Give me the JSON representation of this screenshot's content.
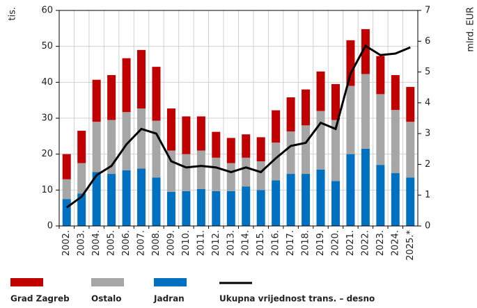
{
  "chart_data": {
    "type": "bar",
    "stacked": true,
    "y_label": "tis.",
    "y2_label": "mlrd. EUR",
    "categories": [
      "2002.",
      "2003.",
      "2004.",
      "2005.",
      "2006.",
      "2007.",
      "2008.",
      "2009.",
      "2010.",
      "2011.",
      "2012.",
      "2013.",
      "2014.",
      "2015.",
      "2016.",
      "2017.",
      "2018.",
      "2019.",
      "2020.",
      "2021.",
      "2022.",
      "2023.",
      "2024.",
      "2025.*"
    ],
    "series": [
      {
        "name": "Grad Zagreb",
        "color": "#c00000",
        "values": [
          7,
          9,
          11.7,
          12.5,
          15,
          16.3,
          15,
          11.7,
          10.5,
          9.5,
          7.2,
          7,
          6.5,
          6.7,
          9,
          9.5,
          10,
          11,
          10,
          12.7,
          12.5,
          10.6,
          9.7,
          9.7
        ]
      },
      {
        "name": "Ostalo",
        "color": "#a6a6a6",
        "values": [
          5.5,
          8.5,
          14,
          15,
          16.2,
          16.7,
          15.8,
          11.5,
          10.3,
          10.7,
          9.3,
          7.8,
          8,
          8,
          10.5,
          11.8,
          13.5,
          16.3,
          17,
          19,
          20.8,
          19.7,
          17.6,
          15.5
        ]
      },
      {
        "name": "Jadran",
        "color": "#0070c0",
        "values": [
          7.5,
          9,
          15,
          14.5,
          15.5,
          16,
          13.5,
          9.5,
          9.7,
          10.3,
          9.7,
          9.7,
          11,
          10,
          12.7,
          14.5,
          14.5,
          15.7,
          12.5,
          20,
          21.5,
          17,
          14.7,
          13.5
        ]
      },
      {
        "name": "Ukupna vrijednost trans. – desno",
        "color": "#000000",
        "type": "line",
        "axis": "y2",
        "values": [
          0.6,
          0.95,
          1.65,
          1.95,
          2.65,
          3.15,
          3.0,
          2.1,
          1.9,
          1.95,
          1.9,
          1.75,
          1.9,
          1.75,
          2.2,
          2.6,
          2.7,
          3.35,
          3.15,
          4.95,
          5.85,
          5.55,
          5.6,
          5.8
        ]
      }
    ],
    "ylim": [
      0,
      60
    ],
    "yticks": [
      0,
      10,
      20,
      30,
      40,
      50,
      60
    ],
    "y2lim": [
      0,
      7
    ],
    "y2ticks": [
      0,
      1,
      2,
      3,
      4,
      5,
      6,
      7
    ],
    "grid": true
  }
}
